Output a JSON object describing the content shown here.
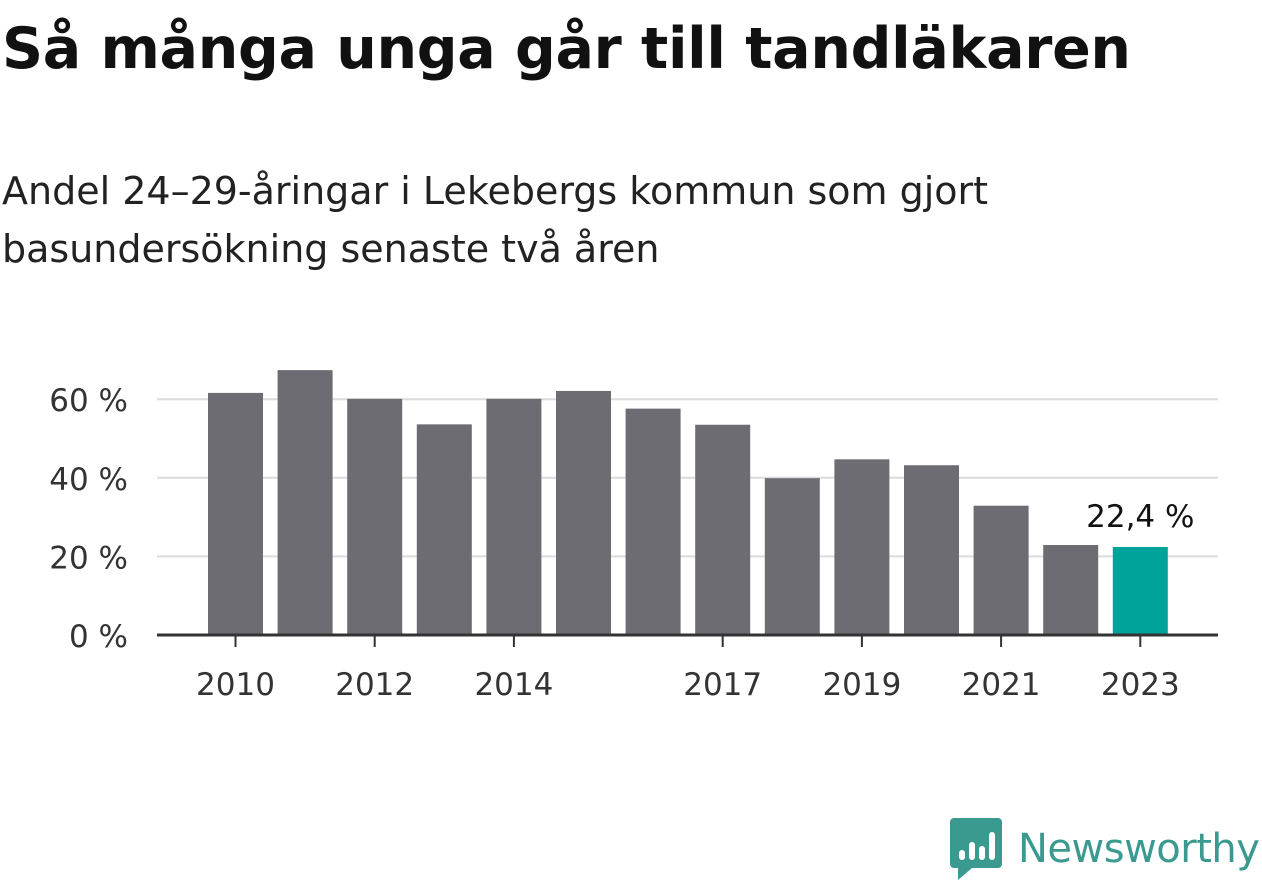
{
  "title": "Så många unga går till tandläkaren",
  "subtitle": "Andel 24–29-åringar i Lekebergs kommun som gjort basundersökning senaste två åren",
  "brand": {
    "name": "Newsworthy",
    "icon": "newsworthy-logo-icon",
    "color": "#3a9a8f"
  },
  "chart_data": {
    "type": "bar",
    "categories": [
      "2010",
      "2011",
      "2012",
      "2013",
      "2014",
      "2015",
      "2016",
      "2017",
      "2018",
      "2019",
      "2020",
      "2021",
      "2022",
      "2023"
    ],
    "values": [
      61.6,
      67.4,
      60.1,
      53.6,
      60.1,
      62.1,
      57.6,
      53.5,
      39.9,
      44.7,
      43.2,
      32.9,
      22.9,
      22.4
    ],
    "tick_labels_x": [
      "2010",
      "2012",
      "2014",
      "2017",
      "2019",
      "2021",
      "2023"
    ],
    "y_ticks": [
      0,
      20,
      40,
      60
    ],
    "y_tick_labels": [
      "0 %",
      "20 %",
      "40 %",
      "60 %"
    ],
    "ylim": [
      0,
      70
    ],
    "grid": true,
    "highlight": {
      "category": "2023",
      "label": "22,4 %"
    },
    "colors": {
      "bar": "#6d6c73",
      "highlight": "#00a39a",
      "grid": "#dcdcdc",
      "axis": "#333333"
    }
  }
}
